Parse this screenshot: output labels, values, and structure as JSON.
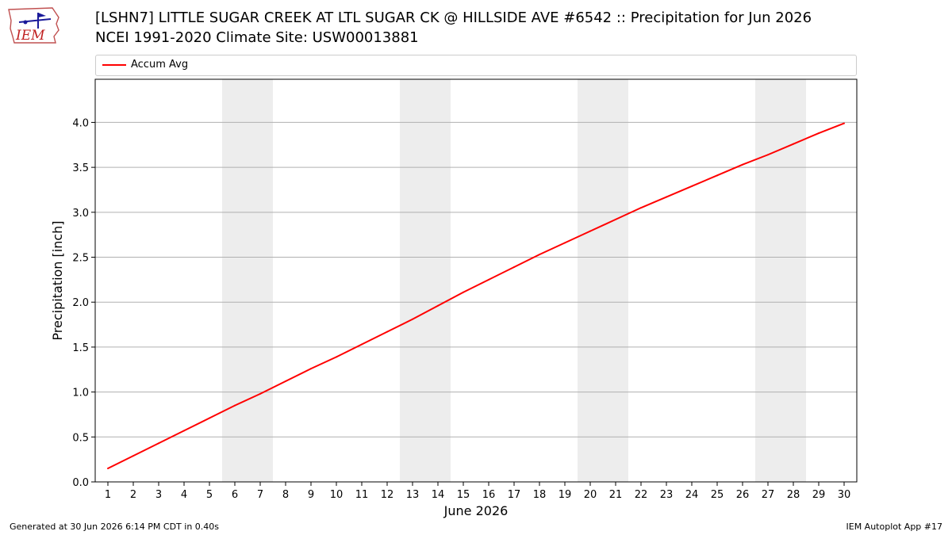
{
  "logo": {
    "text": "IEM",
    "icon": "iem-iowa-logo-icon"
  },
  "title_line1": "[LSHN7] LITTLE SUGAR CREEK  AT LTL SUGAR CK @ HILLSIDE AVE #6542 :: Precipitation for Jun 2026",
  "title_line2": "NCEI 1991-2020 Climate Site: USW00013881",
  "footer_left": "Generated at 30 Jun 2026 6:14 PM CDT in 0.40s",
  "footer_right": "IEM Autoplot App #17",
  "colors": {
    "series": "#ff0000",
    "weekend": "#ededed",
    "grid": "#b0b0b0"
  },
  "chart_data": {
    "type": "line",
    "title": "[LSHN7] LITTLE SUGAR CREEK  AT LTL SUGAR CK @ HILLSIDE AVE #6542 :: Precipitation for Jun 2026",
    "xlabel": "June 2026",
    "ylabel": "Precipitation [inch]",
    "x": [
      1,
      2,
      3,
      4,
      5,
      6,
      7,
      8,
      9,
      10,
      11,
      12,
      13,
      14,
      15,
      16,
      17,
      18,
      19,
      20,
      21,
      22,
      23,
      24,
      25,
      26,
      27,
      28,
      29,
      30
    ],
    "xlim": [
      0.5,
      30.5
    ],
    "ylim": [
      0,
      4.48
    ],
    "yticks": [
      0.0,
      0.5,
      1.0,
      1.5,
      2.0,
      2.5,
      3.0,
      3.5,
      4.0
    ],
    "ytick_labels": [
      "0.0",
      "0.5",
      "1.0",
      "1.5",
      "2.0",
      "2.5",
      "3.0",
      "3.5",
      "4.0"
    ],
    "grid": "y",
    "legend_position": "top",
    "weekend_bands": [
      [
        5.5,
        7.5
      ],
      [
        12.5,
        14.5
      ],
      [
        19.5,
        21.5
      ],
      [
        26.5,
        28.5
      ]
    ],
    "series": [
      {
        "name": "Accum Avg",
        "color": "#ff0000",
        "values": [
          0.15,
          0.29,
          0.43,
          0.57,
          0.71,
          0.85,
          0.98,
          1.12,
          1.26,
          1.39,
          1.53,
          1.67,
          1.81,
          1.96,
          2.11,
          2.25,
          2.39,
          2.53,
          2.66,
          2.79,
          2.92,
          3.05,
          3.17,
          3.29,
          3.41,
          3.53,
          3.64,
          3.76,
          3.88,
          3.99
        ]
      }
    ]
  }
}
